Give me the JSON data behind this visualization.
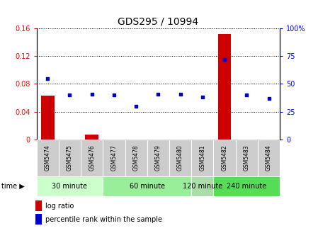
{
  "title": "GDS295 / 10994",
  "samples": [
    "GSM5474",
    "GSM5475",
    "GSM5476",
    "GSM5477",
    "GSM5478",
    "GSM5479",
    "GSM5480",
    "GSM5481",
    "GSM5482",
    "GSM5483",
    "GSM5484"
  ],
  "log_ratio": [
    0.063,
    -0.008,
    0.007,
    -0.009,
    -0.006,
    -0.004,
    -0.003,
    -0.003,
    0.152,
    -0.006,
    -0.004
  ],
  "percentile_rank": [
    55,
    40,
    41,
    40,
    30,
    41,
    41,
    38,
    72,
    40,
    37
  ],
  "ylim_left": [
    0,
    0.16
  ],
  "ylim_right": [
    0,
    100
  ],
  "yticks_left": [
    0,
    0.04,
    0.08,
    0.12,
    0.16
  ],
  "yticks_right": [
    0,
    25,
    50,
    75,
    100
  ],
  "ytick_labels_left": [
    "0",
    "0.04",
    "0.08",
    "0.12",
    "0.16"
  ],
  "ytick_labels_right": [
    "0",
    "25",
    "50",
    "75",
    "100%"
  ],
  "groups_info": [
    {
      "start": 0,
      "end": 2,
      "label": "30 minute",
      "color": "#ccffcc"
    },
    {
      "start": 3,
      "end": 6,
      "label": "60 minute",
      "color": "#99ee99"
    },
    {
      "start": 7,
      "end": 7,
      "label": "120 minute",
      "color": "#aaddaa"
    },
    {
      "start": 8,
      "end": 10,
      "label": "240 minute",
      "color": "#55dd55"
    }
  ],
  "bar_color": "#cc0000",
  "dot_color": "#0000cc",
  "bg_color": "#ffffff",
  "sample_bg": "#cccccc",
  "time_label": "time",
  "legend_log": "log ratio",
  "legend_pct": "percentile rank within the sample",
  "title_fontsize": 10,
  "tick_fontsize": 7,
  "sample_fontsize": 5.5,
  "group_fontsize": 7,
  "legend_fontsize": 7
}
